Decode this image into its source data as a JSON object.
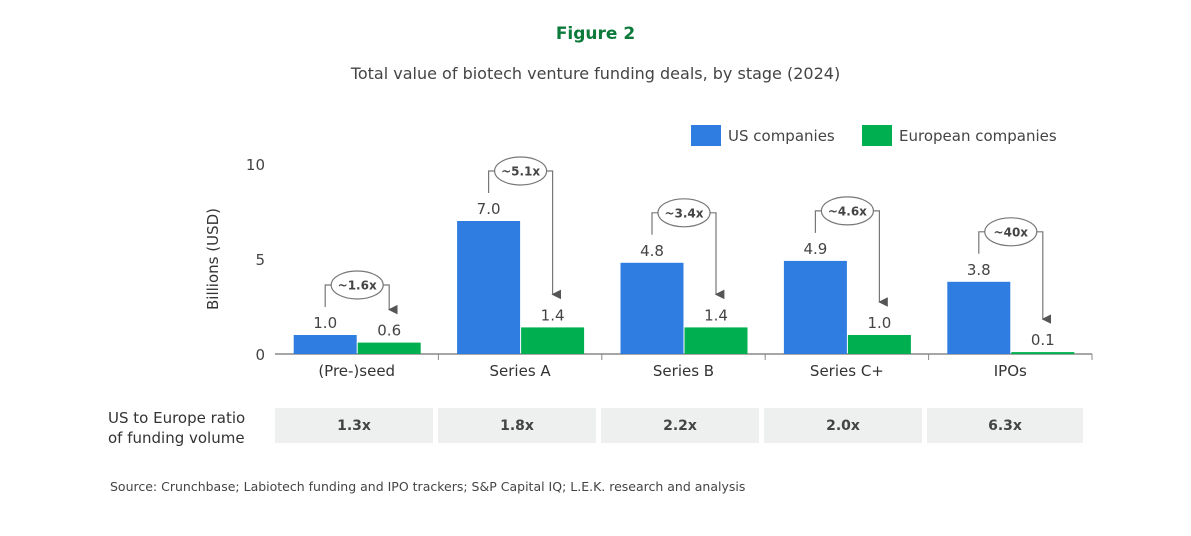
{
  "figure_label": "Figure 2",
  "chart_data": {
    "type": "bar",
    "title": "Total value of biotech venture funding deals, by stage (2024)",
    "ylabel": "Billions (USD)",
    "xlabel": "",
    "ylim": [
      0,
      10
    ],
    "yticks": [
      "0",
      "5",
      "10"
    ],
    "categories": [
      "(Pre-)seed",
      "Series A",
      "Series B",
      "Series C+",
      "IPOs"
    ],
    "series": [
      {
        "name": "US companies",
        "color": "#2f7de1",
        "values": [
          1.0,
          7.0,
          4.8,
          4.9,
          3.8
        ],
        "labels": [
          "1.0",
          "7.0",
          "4.8",
          "4.9",
          "3.8"
        ]
      },
      {
        "name": "European companies",
        "color": "#00b050",
        "values": [
          0.6,
          1.4,
          1.4,
          1.0,
          0.1
        ],
        "labels": [
          "0.6",
          "1.4",
          "1.4",
          "1.0",
          "0.1"
        ]
      }
    ],
    "annotations": [
      "~1.6x",
      "~5.1x",
      "~3.4x",
      "~4.6x",
      "~40x"
    ],
    "legend": "top-right",
    "grid": false
  },
  "ratio_row": {
    "label_line1": "US to Europe ratio",
    "label_line2": "of funding volume",
    "values": [
      "1.3x",
      "1.8x",
      "2.2x",
      "2.0x",
      "6.3x"
    ]
  },
  "source": "Source: Crunchbase; Labiotech funding and IPO trackers; S&P Capital IQ; L.E.K. research and analysis"
}
